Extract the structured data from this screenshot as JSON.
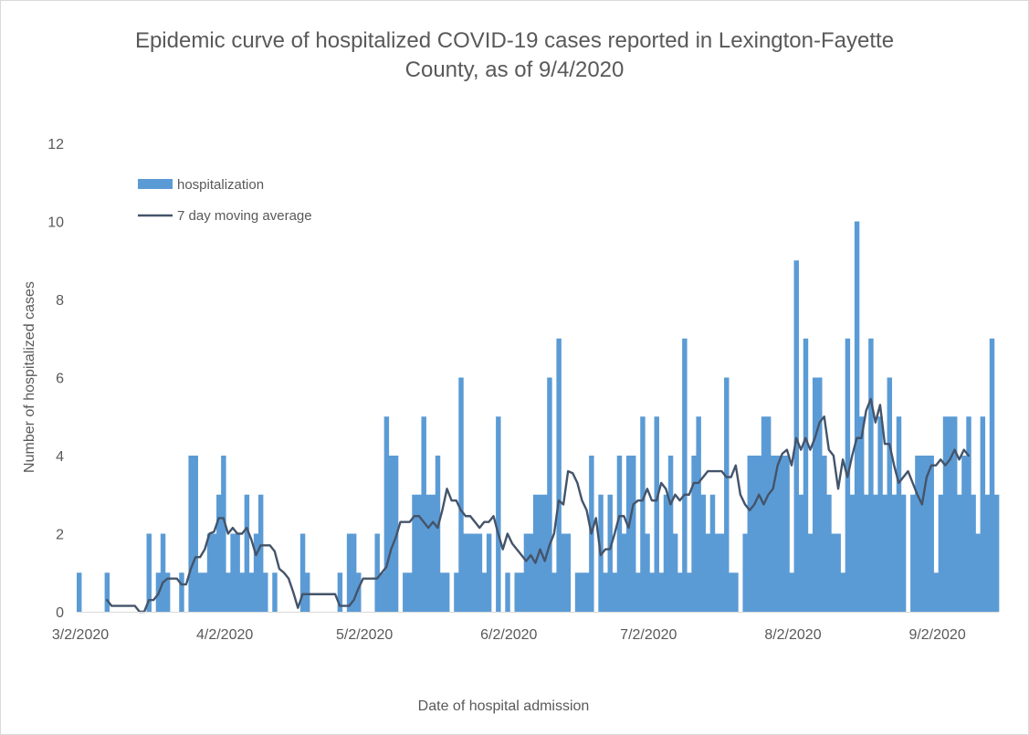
{
  "chart_data": {
    "type": "bar",
    "title": "Epidemic curve of hospitalized COVID-19 cases reported in Lexington-Fayette\nCounty, as of 9/4/2020",
    "xlabel": "Date of hospital admission",
    "ylabel": "Number of hospitalized cases",
    "ylim": [
      0,
      12
    ],
    "y_ticks": [
      0,
      2,
      4,
      6,
      8,
      10,
      12
    ],
    "x_tick_labels": [
      "3/2/2020",
      "4/2/2020",
      "5/2/2020",
      "6/2/2020",
      "7/2/2020",
      "8/2/2020",
      "9/2/2020"
    ],
    "x_tick_day_index": [
      0,
      31,
      61,
      92,
      122,
      153,
      184
    ],
    "start_date": "3/2/2020",
    "grid": false,
    "legend_position": "top-left",
    "colors": {
      "bars": "#5b9bd5",
      "line": "#44546a",
      "text": "#595959",
      "axis": "#d9d9d9"
    },
    "series": [
      {
        "name": "hospitalization",
        "type": "bar",
        "values": [
          1,
          0,
          0,
          0,
          0,
          0,
          1,
          0,
          0,
          0,
          0,
          0,
          0,
          0,
          0,
          2,
          0,
          1,
          2,
          1,
          0,
          0,
          1,
          0,
          4,
          4,
          1,
          1,
          2,
          2,
          3,
          4,
          1,
          2,
          2,
          1,
          3,
          1,
          2,
          3,
          1,
          0,
          1,
          0,
          0,
          0,
          0,
          0,
          2,
          1,
          0,
          0,
          0,
          0,
          0,
          0,
          1,
          0,
          2,
          2,
          1,
          0,
          0,
          0,
          2,
          1,
          5,
          4,
          4,
          0,
          1,
          1,
          3,
          3,
          5,
          3,
          3,
          4,
          1,
          1,
          0,
          1,
          6,
          2,
          2,
          2,
          2,
          1,
          2,
          0,
          5,
          0,
          1,
          0,
          1,
          1,
          2,
          2,
          3,
          3,
          3,
          6,
          1,
          7,
          2,
          2,
          0,
          1,
          1,
          1,
          4,
          0,
          3,
          1,
          3,
          1,
          4,
          2,
          4,
          4,
          1,
          5,
          2,
          1,
          5,
          1,
          3,
          4,
          2,
          1,
          7,
          1,
          4,
          5,
          3,
          2,
          3,
          2,
          2,
          6,
          1,
          1,
          0,
          2,
          4,
          4,
          4,
          5,
          5,
          4,
          4,
          4,
          4,
          1,
          9,
          3,
          7,
          2,
          6,
          6,
          4,
          3,
          2,
          2,
          1,
          7,
          3,
          10,
          5,
          3,
          7,
          3,
          5,
          3,
          6,
          3,
          5,
          3,
          0,
          3,
          4,
          4,
          4,
          4,
          1,
          3,
          5,
          5,
          5,
          3,
          4,
          5,
          3,
          2,
          5,
          3,
          7,
          3
        ]
      },
      {
        "name": "7 day moving average",
        "type": "line",
        "start_index": 6,
        "values": [
          0.3,
          0.15,
          0.15,
          0.15,
          0.15,
          0.15,
          0.15,
          0.0,
          0.0,
          0.3,
          0.3,
          0.45,
          0.75,
          0.85,
          0.85,
          0.85,
          0.7,
          0.7,
          1.1,
          1.4,
          1.4,
          1.6,
          2.0,
          2.05,
          2.4,
          2.4,
          2.0,
          2.15,
          2.0,
          2.0,
          2.15,
          1.85,
          1.45,
          1.7,
          1.7,
          1.7,
          1.55,
          1.1,
          1.0,
          0.85,
          0.5,
          0.1,
          0.45,
          0.45,
          0.45,
          0.45,
          0.45,
          0.45,
          0.45,
          0.45,
          0.15,
          0.15,
          0.15,
          0.3,
          0.6,
          0.85,
          0.85,
          0.85,
          0.85,
          1.0,
          1.15,
          1.6,
          1.9,
          2.3,
          2.3,
          2.3,
          2.45,
          2.45,
          2.3,
          2.15,
          2.3,
          2.15,
          2.6,
          3.15,
          2.85,
          2.85,
          2.6,
          2.45,
          2.45,
          2.3,
          2.15,
          2.3,
          2.3,
          2.45,
          2.0,
          1.6,
          2.0,
          1.75,
          1.6,
          1.45,
          1.3,
          1.45,
          1.25,
          1.6,
          1.3,
          1.7,
          2.0,
          2.85,
          2.75,
          3.6,
          3.55,
          3.3,
          2.85,
          2.6,
          2.0,
          2.4,
          1.45,
          1.6,
          1.6,
          2.0,
          2.45,
          2.45,
          2.15,
          2.75,
          2.85,
          2.85,
          3.15,
          2.85,
          2.85,
          3.3,
          3.15,
          2.75,
          3.0,
          2.85,
          3.0,
          3.0,
          3.3,
          3.3,
          3.45,
          3.6,
          3.6,
          3.6,
          3.6,
          3.45,
          3.45,
          3.75,
          3.0,
          2.75,
          2.6,
          2.75,
          3.0,
          2.75,
          3.0,
          3.15,
          3.75,
          4.05,
          4.15,
          3.75,
          4.45,
          4.15,
          4.45,
          4.15,
          4.45,
          4.85,
          5.0,
          4.15,
          4.0,
          3.15,
          3.9,
          3.45,
          4.0,
          4.45,
          4.45,
          5.15,
          5.45,
          4.85,
          5.3,
          4.3,
          4.3,
          3.75,
          3.3,
          3.45,
          3.6,
          3.3,
          3.0,
          2.75,
          3.45,
          3.75,
          3.75,
          3.9,
          3.75,
          3.9,
          4.15,
          3.9,
          4.15,
          4.0
        ]
      }
    ]
  }
}
